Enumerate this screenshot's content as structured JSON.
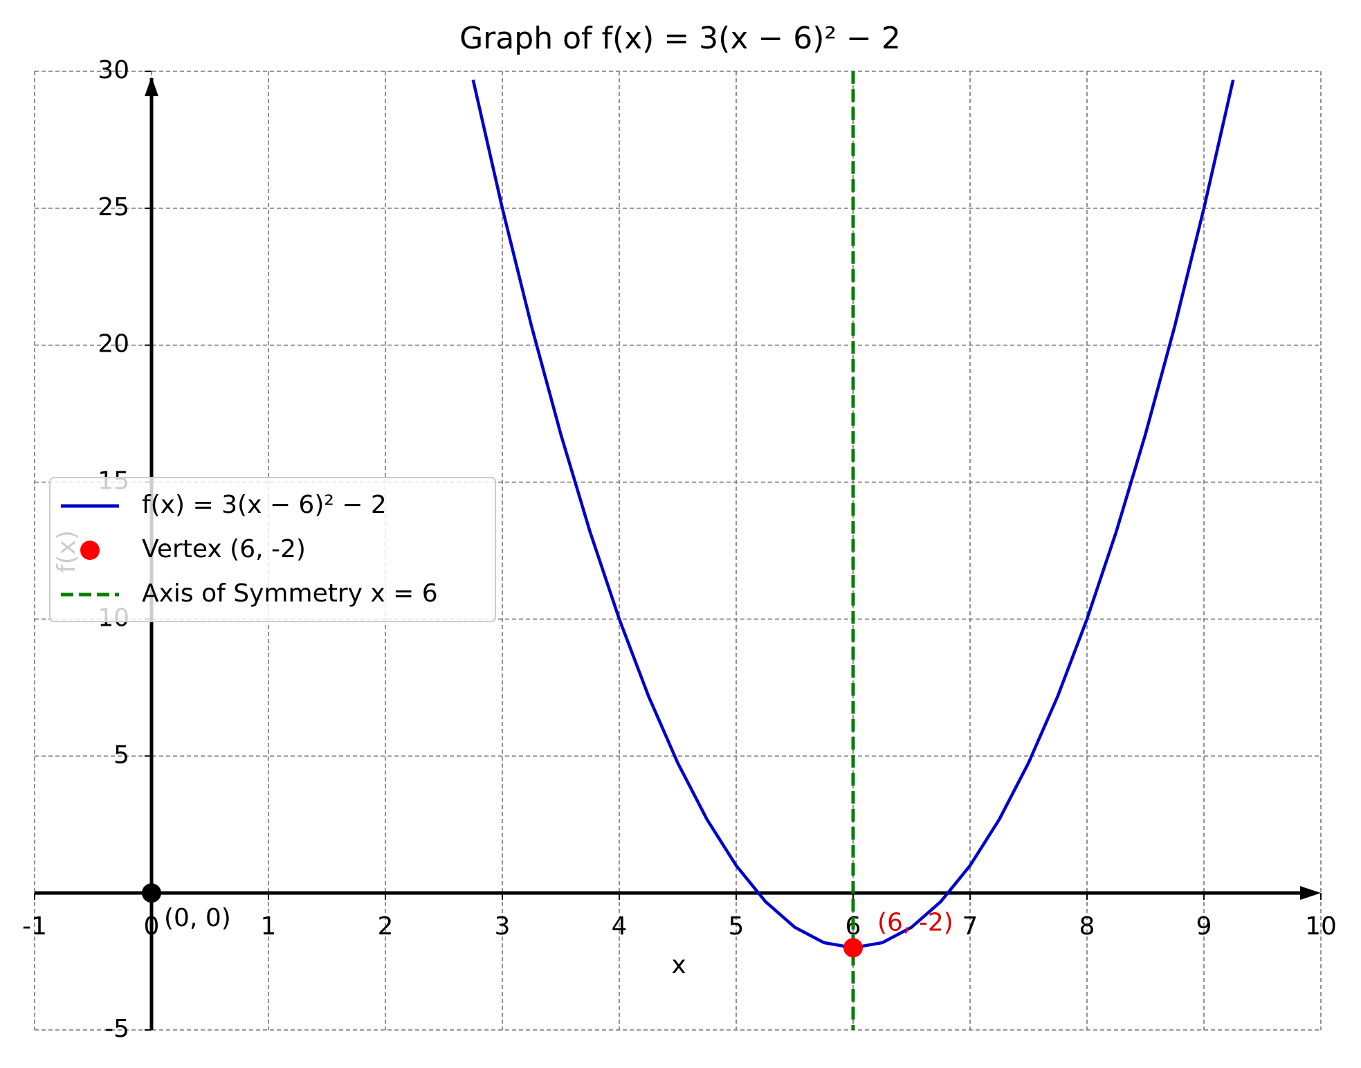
{
  "chart_data": {
    "type": "line",
    "title": "Graph of f(x) = 3(x − 6)² − 2",
    "xlabel": "x",
    "ylabel": "f(x)",
    "xlim": [
      -1,
      10
    ],
    "ylim": [
      -5,
      30
    ],
    "xticks": [
      -1,
      0,
      1,
      2,
      3,
      4,
      5,
      6,
      7,
      8,
      9,
      10
    ],
    "yticks": [
      -5,
      5,
      10,
      15,
      20,
      25,
      30
    ],
    "grid": true,
    "legend": "center left",
    "series": [
      {
        "type": "line",
        "name": "f(x) = 3(x − 6)² − 2",
        "color": "#0000cc",
        "x": [
          2.75,
          3,
          3.25,
          3.5,
          3.75,
          4,
          4.25,
          4.5,
          4.75,
          5,
          5.25,
          5.5,
          5.75,
          6,
          6.25,
          6.5,
          6.75,
          7,
          7.25,
          7.5,
          7.75,
          8,
          8.25,
          8.5,
          8.75,
          9,
          9.25
        ],
        "values": [
          29.6875,
          25,
          20.6875,
          16.75,
          13.1875,
          10,
          7.1875,
          4.75,
          2.6875,
          1,
          -0.3125,
          -1.25,
          -1.8125,
          -2,
          -1.8125,
          -1.25,
          -0.3125,
          1,
          2.6875,
          4.75,
          7.1875,
          10,
          13.1875,
          16.75,
          20.6875,
          25,
          29.6875
        ]
      },
      {
        "type": "scatter",
        "name": "Vertex (6, -2)",
        "color": "#ff0000",
        "x": [
          6
        ],
        "values": [
          -2
        ]
      },
      {
        "type": "vline",
        "name": "Axis of Symmetry x = 6",
        "color": "#008000",
        "x": [
          6
        ]
      }
    ],
    "annotations": [
      {
        "text": "(0, 0)",
        "x": 0,
        "y": 0,
        "color": "#000000"
      },
      {
        "text": "(6, -2)",
        "x": 6,
        "y": -2,
        "color": "#dd0000"
      }
    ]
  }
}
